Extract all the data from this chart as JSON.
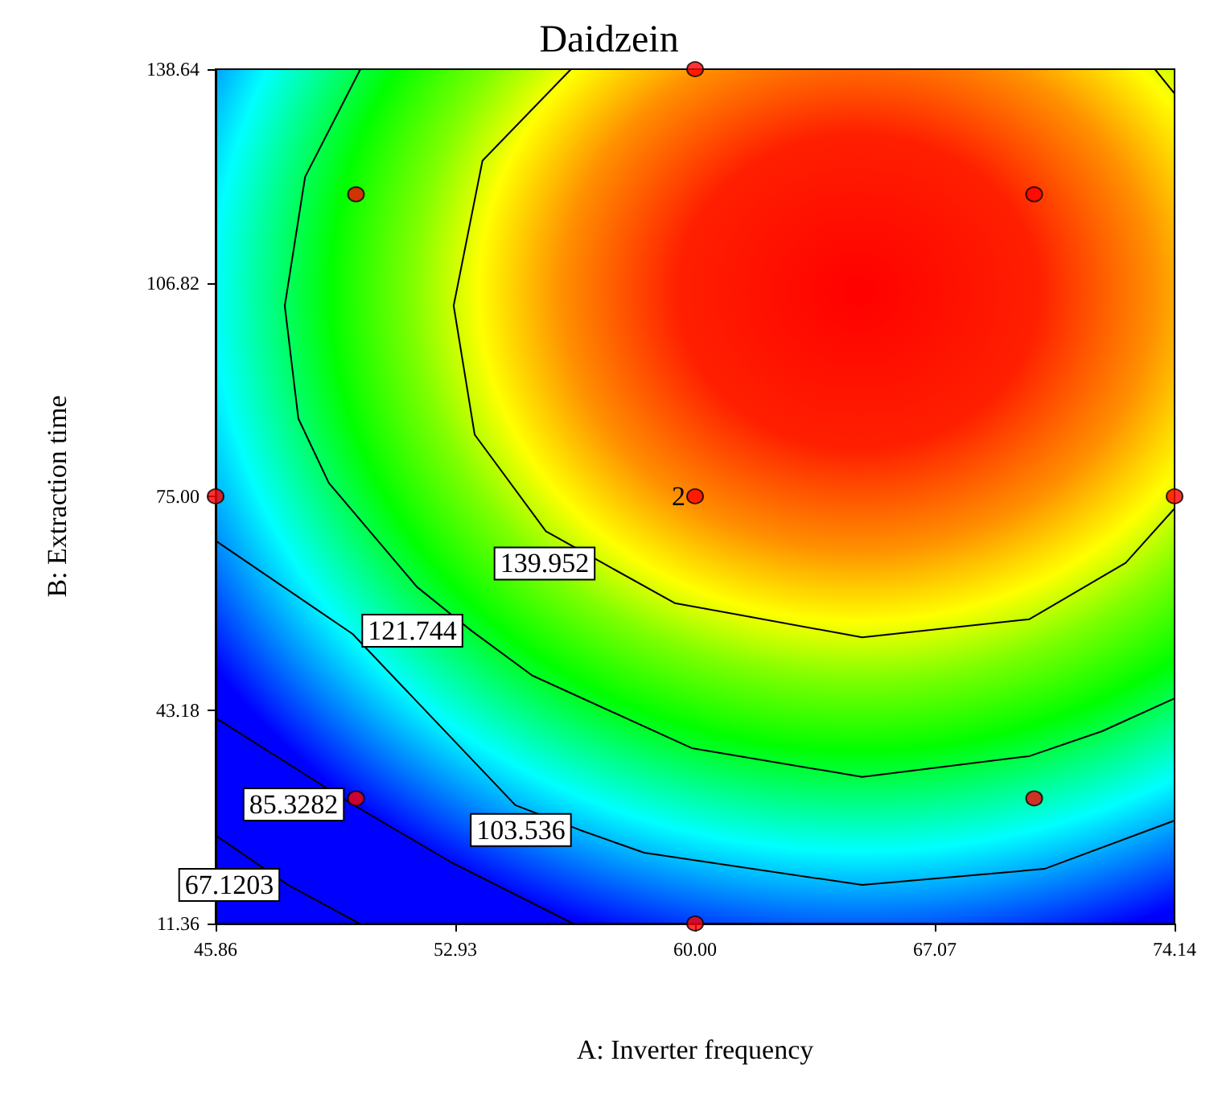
{
  "chart_data": {
    "type": "scatter",
    "title": "Daidzein",
    "xlabel": "A: Inverter frequency",
    "ylabel": "B: Extraction time",
    "xlim": [
      45.86,
      74.14
    ],
    "ylim": [
      11.36,
      138.64
    ],
    "xticks": [
      45.86,
      52.93,
      {
        "value": 60,
        "label": "60.00"
      },
      67.07,
      74.14
    ],
    "yticks": [
      11.36,
      43.18,
      {
        "value": 75,
        "label": "75.00"
      },
      106.82,
      138.64
    ],
    "grid": false,
    "legend": false,
    "marker": "circle",
    "line_style": "solid",
    "series": [
      {
        "type": "line",
        "name": "139.952",
        "marker": "none",
        "color": "#000000",
        "x": [
          56.34,
          53.73,
          52.88,
          53.5,
          55.6,
          57.3,
          59.4,
          64.93,
          69.86,
          72.7,
          74.14
        ],
        "values": [
          138.64,
          125,
          103.4,
          84.2,
          69.8,
          65.0,
          59.1,
          54.0,
          56.7,
          65.1,
          73.2
        ]
      },
      {
        "type": "line",
        "marker": "none",
        "color": "#000000",
        "x": [
          73.56,
          74.14
        ],
        "values": [
          138.64,
          135.0
        ]
      },
      {
        "type": "line",
        "name": "121.744",
        "marker": "none",
        "color": "#000000",
        "x": [
          50.13,
          48.5,
          47.9,
          48.3,
          49.2,
          51.8,
          53.4,
          55.2,
          59.9,
          64.93,
          69.86,
          72.0,
          74.14
        ],
        "values": [
          138.64,
          122.6,
          103.4,
          86.6,
          77.0,
          61.5,
          55.0,
          48.3,
          37.5,
          33.2,
          36.3,
          40.0,
          44.9
        ]
      },
      {
        "type": "line",
        "name": "103.536",
        "marker": "none",
        "color": "#000000",
        "x": [
          45.86,
          49.9,
          54.7,
          56.6,
          58.5,
          64.93,
          70.3,
          74.14
        ],
        "values": [
          68.4,
          54.5,
          29.0,
          25.3,
          21.9,
          17.1,
          19.5,
          26.7
        ]
      },
      {
        "type": "line",
        "name": "85.3282",
        "marker": "none",
        "color": "#000000",
        "x": [
          45.86,
          49.9,
          52.8,
          56.4
        ],
        "values": [
          42.0,
          29.1,
          20.5,
          11.36
        ]
      },
      {
        "type": "line",
        "name": "67.1203",
        "marker": "none",
        "color": "#000000",
        "x": [
          45.86,
          48.0,
          50.1
        ],
        "values": [
          24.5,
          17.1,
          11.36
        ]
      },
      {
        "color": "#ff0000",
        "x": [
          50,
          60,
          70,
          45.86,
          60,
          74.14,
          50,
          70,
          60
        ],
        "values": [
          120,
          138.64,
          120,
          75,
          75,
          75,
          30,
          30,
          11.36
        ]
      }
    ],
    "annotations": [
      {
        "text": "2",
        "x": 60,
        "y": 75
      }
    ]
  }
}
